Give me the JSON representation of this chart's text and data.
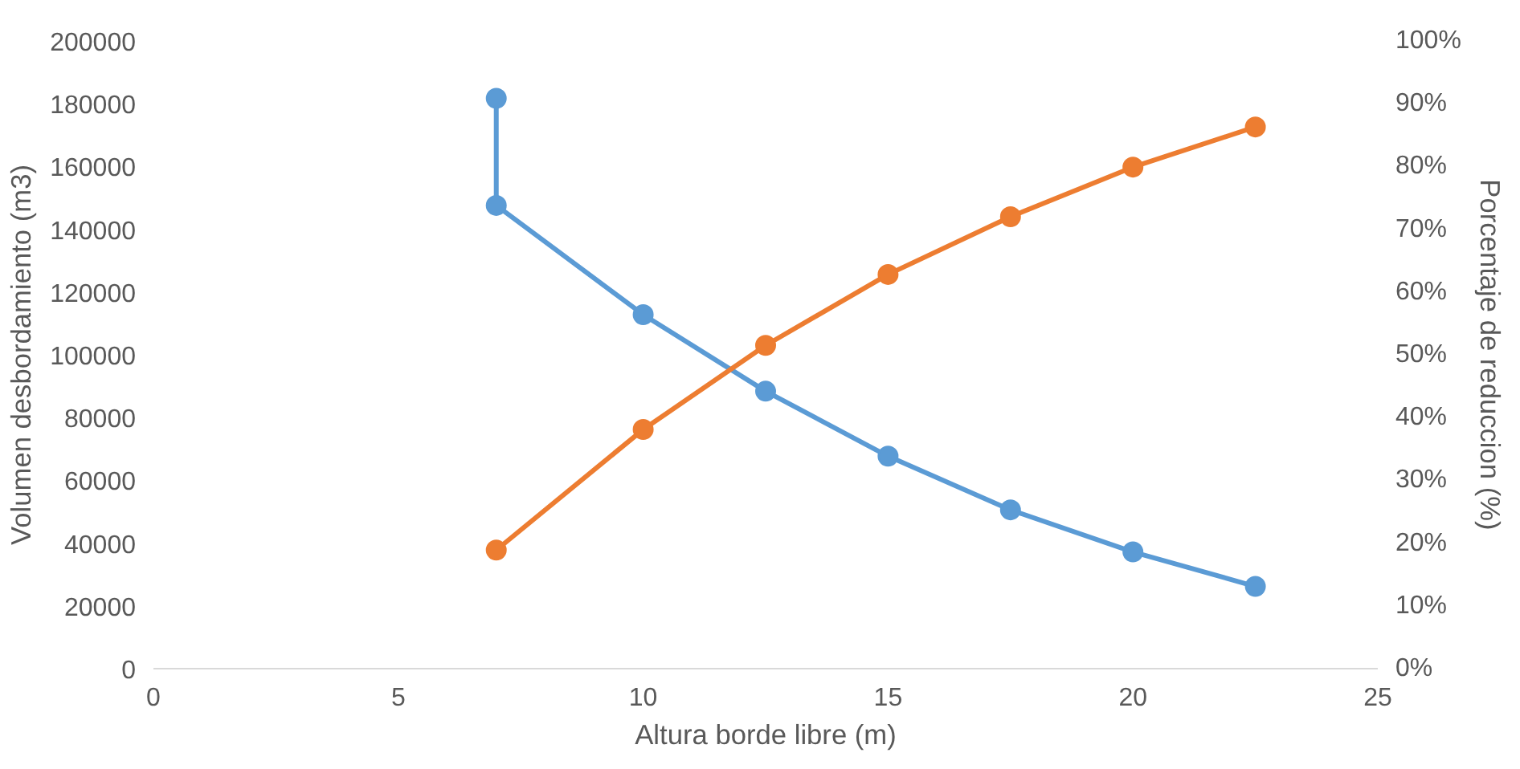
{
  "chart_data": {
    "type": "line",
    "xlabel": "Altura borde libre (m)",
    "ylabel": "Volumen desbordamiento (m3)",
    "y2label": "Porcentaje de reduccion (%)",
    "xlim": [
      0,
      25
    ],
    "xticks": [
      0,
      5,
      10,
      15,
      20,
      25
    ],
    "ylim": [
      0,
      200000
    ],
    "yticks": [
      0,
      20000,
      40000,
      60000,
      80000,
      100000,
      120000,
      140000,
      160000,
      180000,
      200000
    ],
    "y2lim": [
      0,
      100
    ],
    "y2ticks": [
      {
        "value": 0,
        "label": "0%"
      },
      {
        "value": 10,
        "label": "10%"
      },
      {
        "value": 20,
        "label": "20%"
      },
      {
        "value": 30,
        "label": "30%"
      },
      {
        "value": 40,
        "label": "40%"
      },
      {
        "value": 50,
        "label": "50%"
      },
      {
        "value": 60,
        "label": "60%"
      },
      {
        "value": 70,
        "label": "70%"
      },
      {
        "value": 80,
        "label": "80%"
      },
      {
        "value": 90,
        "label": "90%"
      },
      {
        "value": 100,
        "label": "100%"
      }
    ],
    "grid": false,
    "marker": "circle",
    "line_style": "solid",
    "series": [
      {
        "color": "#5b9bd5",
        "x": [
          7,
          7,
          10,
          12.5,
          15,
          17.5,
          20,
          22.5
        ],
        "values": [
          181700,
          147600,
          112800,
          88400,
          67700,
          50600,
          37200,
          26200
        ]
      },
      {
        "color": "#ed7d31",
        "axis": "y2",
        "x": [
          7,
          10,
          12.5,
          15,
          17.5,
          20,
          22.5
        ],
        "values": [
          18.9,
          38.1,
          51.5,
          62.8,
          72.0,
          79.9,
          86.3
        ]
      }
    ]
  }
}
